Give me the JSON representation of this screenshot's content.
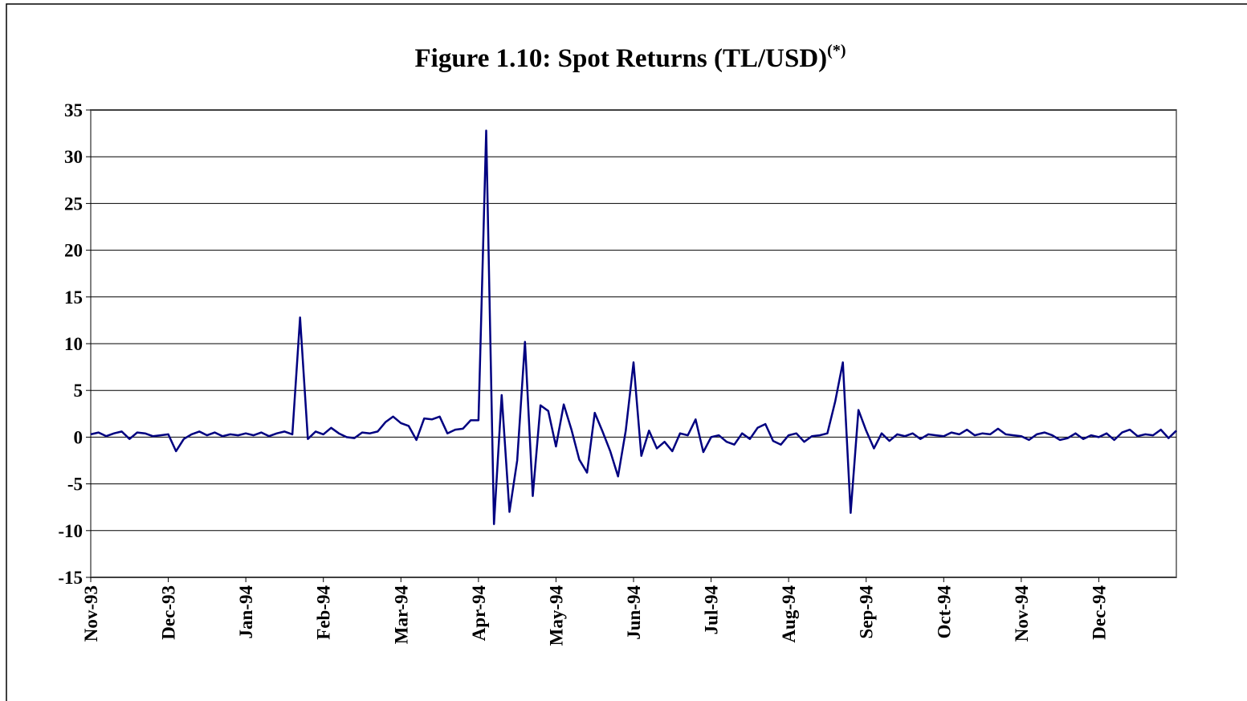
{
  "chart_data": {
    "type": "line",
    "title": "Figure 1.10: Spot Returns (TL/USD)",
    "title_note": "(*)",
    "categories": [
      "Nov-93",
      null,
      null,
      null,
      null,
      null,
      null,
      null,
      null,
      null,
      "Dec-93",
      null,
      null,
      null,
      null,
      null,
      null,
      null,
      null,
      null,
      "Jan-94",
      null,
      null,
      null,
      null,
      null,
      null,
      null,
      null,
      null,
      "Feb-94",
      null,
      null,
      null,
      null,
      null,
      null,
      null,
      null,
      null,
      "Mar-94",
      null,
      null,
      null,
      null,
      null,
      null,
      null,
      null,
      null,
      "Apr-94",
      null,
      null,
      null,
      null,
      null,
      null,
      null,
      null,
      null,
      "May-94",
      null,
      null,
      null,
      null,
      null,
      null,
      null,
      null,
      null,
      "Jun-94",
      null,
      null,
      null,
      null,
      null,
      null,
      null,
      null,
      null,
      "Jul-94",
      null,
      null,
      null,
      null,
      null,
      null,
      null,
      null,
      null,
      "Aug-94",
      null,
      null,
      null,
      null,
      null,
      null,
      null,
      null,
      null,
      "Sep-94",
      null,
      null,
      null,
      null,
      null,
      null,
      null,
      null,
      null,
      "Oct-94",
      null,
      null,
      null,
      null,
      null,
      null,
      null,
      null,
      null,
      "Nov-94",
      null,
      null,
      null,
      null,
      null,
      null,
      null,
      null,
      null,
      "Dec-94",
      null,
      null,
      null,
      null,
      null,
      null,
      null,
      null,
      null,
      null
    ],
    "series": [
      {
        "color": "#000080",
        "values": [
          0.3,
          0.5,
          0.1,
          0.4,
          0.6,
          -0.2,
          0.5,
          0.4,
          0.1,
          0.2,
          0.3,
          -1.5,
          -0.2,
          0.3,
          0.6,
          0.2,
          0.5,
          0.1,
          0.3,
          0.2,
          0.4,
          0.2,
          0.5,
          0.1,
          0.4,
          0.6,
          0.3,
          12.8,
          -0.2,
          0.6,
          0.3,
          1.0,
          0.4,
          0.0,
          -0.1,
          0.5,
          0.4,
          0.6,
          1.6,
          2.2,
          1.5,
          1.2,
          -0.3,
          2.0,
          1.9,
          2.2,
          0.4,
          0.8,
          0.9,
          1.8,
          1.8,
          32.8,
          -9.3,
          4.5,
          -8.0,
          -2.5,
          10.2,
          -6.3,
          3.4,
          2.8,
          -1.0,
          3.5,
          0.8,
          -2.4,
          -3.8,
          2.6,
          0.6,
          -1.5,
          -4.2,
          0.7,
          8.0,
          -2.0,
          0.7,
          -1.2,
          -0.5,
          -1.5,
          0.4,
          0.2,
          1.9,
          -1.6,
          0.0,
          0.2,
          -0.5,
          -0.8,
          0.4,
          -0.2,
          1.0,
          1.4,
          -0.4,
          -0.8,
          0.2,
          0.4,
          -0.5,
          0.1,
          0.2,
          0.4,
          3.8,
          8.0,
          -8.1,
          2.9,
          0.7,
          -1.2,
          0.4,
          -0.4,
          0.3,
          0.1,
          0.4,
          -0.2,
          0.3,
          0.2,
          0.1,
          0.5,
          0.3,
          0.8,
          0.2,
          0.4,
          0.3,
          0.9,
          0.3,
          0.2,
          0.1,
          -0.3,
          0.3,
          0.5,
          0.2,
          -0.3,
          -0.1,
          0.4,
          -0.2,
          0.2,
          0.0,
          0.4,
          -0.3,
          0.5,
          0.8,
          0.1,
          0.3,
          0.2,
          0.8,
          -0.1,
          0.7
        ]
      }
    ],
    "ylim": [
      -15,
      35
    ],
    "yticks": [
      -15,
      -10,
      -5,
      0,
      5,
      10,
      15,
      20,
      25,
      30,
      35
    ],
    "grid": true
  }
}
